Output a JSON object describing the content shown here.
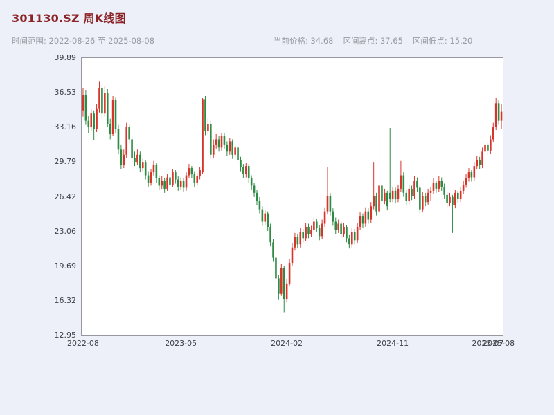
{
  "header": {
    "title": "301130.SZ 周K线图",
    "range_label": "时间范围: 2022-08-26 至 2025-08-08",
    "current_price_label": "当前价格: 34.68",
    "range_high_label": "区间高点: 37.65",
    "range_low_label": "区间低点: 15.20"
  },
  "colors": {
    "page_background": "#edf0f8",
    "plot_background": "#ffffff",
    "plot_border": "#97979f",
    "title_color": "#8c2327",
    "meta_color": "#9b9ba3",
    "axis_label_color": "#3f3f46",
    "up_color": "#d9342b",
    "down_color": "#2e8b44"
  },
  "chart_data": {
    "type": "candlestick",
    "symbol": "301130.SZ",
    "interval": "weekly",
    "title": "301130.SZ 周K线图",
    "start_date": "2022-08-26",
    "end_date": "2025-08-08",
    "current_price": 34.68,
    "range_high": 37.65,
    "range_low": 15.2,
    "ylim": [
      12.95,
      39.89
    ],
    "grid": false,
    "y_ticks": [
      39.89,
      36.53,
      33.16,
      29.79,
      26.42,
      23.06,
      19.69,
      16.32,
      12.95
    ],
    "x_ticks": [
      {
        "week": 0,
        "label": "2022-08"
      },
      {
        "week": 36,
        "label": "2023-05"
      },
      {
        "week": 75,
        "label": "2024-02"
      },
      {
        "week": 114,
        "label": "2024-11"
      },
      {
        "week": 149,
        "label": "2025-07"
      },
      {
        "week": 153,
        "label": "2025-08"
      }
    ],
    "up_color": "#d9342b",
    "down_color": "#2e8b44",
    "ohlc_format": [
      "open",
      "high",
      "low",
      "close"
    ],
    "candles_ohlc": [
      [
        34.8,
        37.0,
        34.2,
        36.3
      ],
      [
        36.3,
        36.8,
        33.4,
        33.8
      ],
      [
        33.8,
        34.3,
        32.6,
        33.2
      ],
      [
        33.2,
        34.9,
        32.8,
        34.5
      ],
      [
        34.5,
        34.8,
        31.9,
        33.0
      ],
      [
        33.0,
        35.4,
        32.7,
        35.0
      ],
      [
        35.0,
        37.65,
        34.6,
        37.0
      ],
      [
        37.0,
        37.3,
        34.1,
        34.5
      ],
      [
        34.5,
        37.2,
        34.2,
        36.5
      ],
      [
        36.5,
        36.9,
        33.2,
        33.5
      ],
      [
        33.5,
        34.0,
        32.0,
        32.5
      ],
      [
        32.5,
        36.2,
        32.3,
        35.8
      ],
      [
        35.8,
        36.1,
        32.6,
        33.0
      ],
      [
        33.0,
        33.4,
        30.6,
        31.0
      ],
      [
        31.0,
        31.5,
        29.1,
        29.5
      ],
      [
        29.5,
        31.0,
        29.2,
        30.5
      ],
      [
        30.5,
        33.6,
        30.2,
        33.2
      ],
      [
        33.2,
        33.5,
        31.6,
        32.0
      ],
      [
        32.0,
        32.3,
        29.8,
        30.2
      ],
      [
        30.2,
        30.8,
        29.4,
        29.8
      ],
      [
        29.8,
        31.0,
        29.5,
        30.5
      ],
      [
        30.5,
        30.8,
        28.8,
        29.2
      ],
      [
        29.2,
        30.2,
        28.9,
        29.8
      ],
      [
        29.8,
        30.0,
        28.1,
        28.5
      ],
      [
        28.5,
        28.9,
        27.4,
        27.8
      ],
      [
        27.8,
        29.1,
        27.5,
        28.8
      ],
      [
        28.8,
        29.9,
        28.5,
        29.5
      ],
      [
        29.5,
        29.7,
        27.8,
        28.2
      ],
      [
        28.2,
        28.5,
        27.1,
        27.5
      ],
      [
        27.5,
        28.4,
        27.2,
        28.0
      ],
      [
        28.0,
        28.2,
        26.8,
        27.2
      ],
      [
        27.2,
        28.6,
        27.0,
        28.3
      ],
      [
        28.3,
        28.5,
        27.2,
        27.6
      ],
      [
        27.6,
        29.1,
        27.4,
        28.8
      ],
      [
        28.8,
        29.0,
        27.7,
        28.1
      ],
      [
        28.1,
        28.4,
        27.0,
        27.4
      ],
      [
        27.4,
        28.3,
        27.1,
        28.0
      ],
      [
        28.0,
        28.2,
        26.9,
        27.3
      ],
      [
        27.3,
        28.8,
        27.0,
        28.5
      ],
      [
        28.5,
        29.6,
        28.2,
        29.2
      ],
      [
        29.2,
        29.4,
        28.2,
        28.6
      ],
      [
        28.6,
        28.9,
        27.4,
        27.8
      ],
      [
        27.8,
        28.7,
        27.5,
        28.4
      ],
      [
        28.4,
        29.3,
        28.1,
        29.0
      ],
      [
        28.8,
        36.0,
        28.6,
        35.9
      ],
      [
        35.9,
        36.2,
        32.4,
        32.8
      ],
      [
        32.8,
        34.1,
        32.5,
        33.5
      ],
      [
        33.5,
        33.8,
        30.1,
        30.5
      ],
      [
        30.5,
        32.0,
        30.2,
        31.5
      ],
      [
        31.5,
        32.5,
        31.1,
        32.0
      ],
      [
        32.0,
        32.3,
        30.8,
        31.2
      ],
      [
        31.2,
        32.6,
        30.9,
        32.3
      ],
      [
        32.3,
        32.6,
        31.1,
        31.5
      ],
      [
        31.5,
        31.8,
        30.4,
        30.8
      ],
      [
        30.8,
        32.1,
        30.5,
        31.8
      ],
      [
        31.8,
        32.0,
        30.1,
        30.5
      ],
      [
        30.5,
        31.5,
        30.2,
        31.2
      ],
      [
        31.2,
        31.4,
        29.6,
        30.0
      ],
      [
        30.0,
        30.3,
        28.9,
        29.3
      ],
      [
        29.3,
        29.6,
        28.2,
        28.6
      ],
      [
        28.6,
        29.7,
        28.3,
        29.4
      ],
      [
        29.4,
        29.6,
        27.8,
        28.2
      ],
      [
        28.2,
        28.5,
        27.1,
        27.5
      ],
      [
        27.5,
        27.8,
        26.4,
        26.8
      ],
      [
        26.8,
        27.1,
        25.6,
        26.0
      ],
      [
        26.0,
        26.4,
        24.8,
        25.2
      ],
      [
        25.2,
        25.5,
        23.6,
        24.0
      ],
      [
        24.0,
        25.1,
        23.7,
        24.8
      ],
      [
        24.8,
        25.0,
        23.1,
        23.5
      ],
      [
        23.5,
        23.8,
        21.6,
        22.0
      ],
      [
        22.0,
        22.3,
        20.1,
        20.5
      ],
      [
        20.5,
        20.8,
        18.1,
        18.5
      ],
      [
        18.5,
        18.8,
        16.4,
        17.0
      ],
      [
        17.0,
        19.9,
        16.8,
        19.5
      ],
      [
        19.5,
        19.7,
        15.2,
        16.5
      ],
      [
        16.5,
        18.4,
        16.2,
        18.0
      ],
      [
        18.0,
        20.4,
        17.8,
        20.0
      ],
      [
        20.0,
        21.9,
        19.7,
        21.5
      ],
      [
        21.5,
        22.9,
        21.2,
        22.5
      ],
      [
        22.5,
        22.8,
        21.4,
        21.8
      ],
      [
        21.8,
        23.4,
        21.5,
        23.0
      ],
      [
        23.0,
        23.3,
        22.0,
        22.4
      ],
      [
        22.4,
        23.9,
        22.1,
        23.5
      ],
      [
        23.5,
        23.8,
        22.4,
        22.8
      ],
      [
        22.8,
        23.6,
        22.5,
        23.2
      ],
      [
        23.2,
        24.4,
        22.9,
        24.0
      ],
      [
        24.0,
        24.3,
        23.0,
        23.4
      ],
      [
        23.4,
        23.7,
        22.2,
        22.6
      ],
      [
        22.6,
        24.2,
        22.3,
        23.8
      ],
      [
        23.8,
        25.4,
        23.5,
        25.0
      ],
      [
        25.0,
        29.3,
        24.7,
        26.5
      ],
      [
        26.5,
        26.8,
        24.6,
        25.0
      ],
      [
        25.0,
        25.3,
        23.6,
        24.0
      ],
      [
        24.0,
        24.4,
        22.8,
        23.2
      ],
      [
        23.2,
        24.2,
        22.9,
        23.8
      ],
      [
        23.8,
        24.0,
        22.4,
        22.8
      ],
      [
        22.8,
        23.9,
        22.5,
        23.5
      ],
      [
        23.5,
        23.7,
        22.0,
        22.4
      ],
      [
        22.4,
        22.7,
        21.4,
        21.8
      ],
      [
        21.8,
        23.4,
        21.5,
        23.0
      ],
      [
        23.0,
        23.3,
        21.8,
        22.2
      ],
      [
        22.2,
        23.9,
        21.9,
        23.5
      ],
      [
        23.5,
        24.9,
        23.2,
        24.5
      ],
      [
        24.5,
        24.8,
        23.4,
        23.8
      ],
      [
        23.8,
        25.4,
        23.5,
        25.0
      ],
      [
        25.0,
        25.3,
        23.8,
        24.2
      ],
      [
        24.2,
        25.9,
        23.9,
        25.5
      ],
      [
        25.5,
        29.8,
        25.2,
        26.5
      ],
      [
        26.5,
        26.8,
        24.6,
        25.0
      ],
      [
        25.0,
        31.9,
        24.8,
        27.5
      ],
      [
        27.5,
        27.8,
        25.6,
        26.0
      ],
      [
        26.0,
        27.2,
        25.7,
        26.8
      ],
      [
        26.8,
        27.0,
        25.1,
        25.5
      ],
      [
        26.8,
        33.1,
        25.9,
        26.2
      ],
      [
        26.2,
        27.4,
        25.9,
        27.0
      ],
      [
        27.0,
        27.3,
        25.8,
        26.2
      ],
      [
        26.2,
        27.6,
        25.9,
        27.2
      ],
      [
        27.2,
        29.9,
        26.9,
        28.5
      ],
      [
        28.5,
        28.8,
        26.4,
        26.8
      ],
      [
        26.8,
        27.1,
        25.6,
        26.0
      ],
      [
        26.0,
        27.6,
        25.7,
        27.2
      ],
      [
        27.2,
        27.5,
        26.1,
        26.5
      ],
      [
        26.5,
        28.4,
        26.2,
        28.0
      ],
      [
        28.0,
        28.3,
        26.9,
        27.3
      ],
      [
        27.3,
        27.6,
        24.8,
        25.2
      ],
      [
        25.2,
        26.9,
        24.9,
        26.5
      ],
      [
        26.5,
        26.8,
        25.5,
        25.9
      ],
      [
        25.9,
        27.2,
        25.6,
        26.8
      ],
      [
        26.8,
        27.4,
        26.0,
        27.0
      ],
      [
        27.0,
        28.2,
        26.7,
        27.8
      ],
      [
        27.8,
        28.0,
        26.8,
        27.2
      ],
      [
        27.2,
        28.4,
        26.9,
        28.0
      ],
      [
        28.0,
        28.3,
        27.0,
        27.4
      ],
      [
        27.4,
        27.7,
        26.2,
        26.6
      ],
      [
        26.6,
        26.9,
        25.4,
        25.8
      ],
      [
        25.8,
        26.8,
        25.5,
        26.4
      ],
      [
        26.4,
        26.6,
        22.9,
        25.6
      ],
      [
        25.6,
        27.1,
        25.3,
        26.8
      ],
      [
        26.8,
        27.0,
        25.8,
        26.2
      ],
      [
        26.2,
        27.4,
        25.9,
        27.0
      ],
      [
        27.0,
        28.0,
        26.7,
        27.6
      ],
      [
        27.6,
        28.6,
        27.3,
        28.2
      ],
      [
        28.2,
        29.2,
        27.9,
        28.8
      ],
      [
        28.8,
        29.0,
        27.9,
        28.3
      ],
      [
        28.3,
        29.8,
        28.0,
        29.4
      ],
      [
        29.4,
        30.4,
        29.1,
        30.0
      ],
      [
        30.0,
        30.3,
        29.1,
        29.5
      ],
      [
        29.5,
        31.2,
        29.2,
        30.8
      ],
      [
        30.8,
        31.9,
        30.5,
        31.5
      ],
      [
        31.5,
        31.8,
        30.5,
        30.9
      ],
      [
        30.9,
        32.4,
        30.6,
        32.0
      ],
      [
        32.0,
        33.6,
        31.7,
        33.2
      ],
      [
        33.2,
        36.0,
        32.9,
        35.5
      ],
      [
        35.5,
        35.8,
        33.4,
        33.8
      ],
      [
        33.8,
        35.4,
        33.0,
        34.68
      ]
    ]
  }
}
